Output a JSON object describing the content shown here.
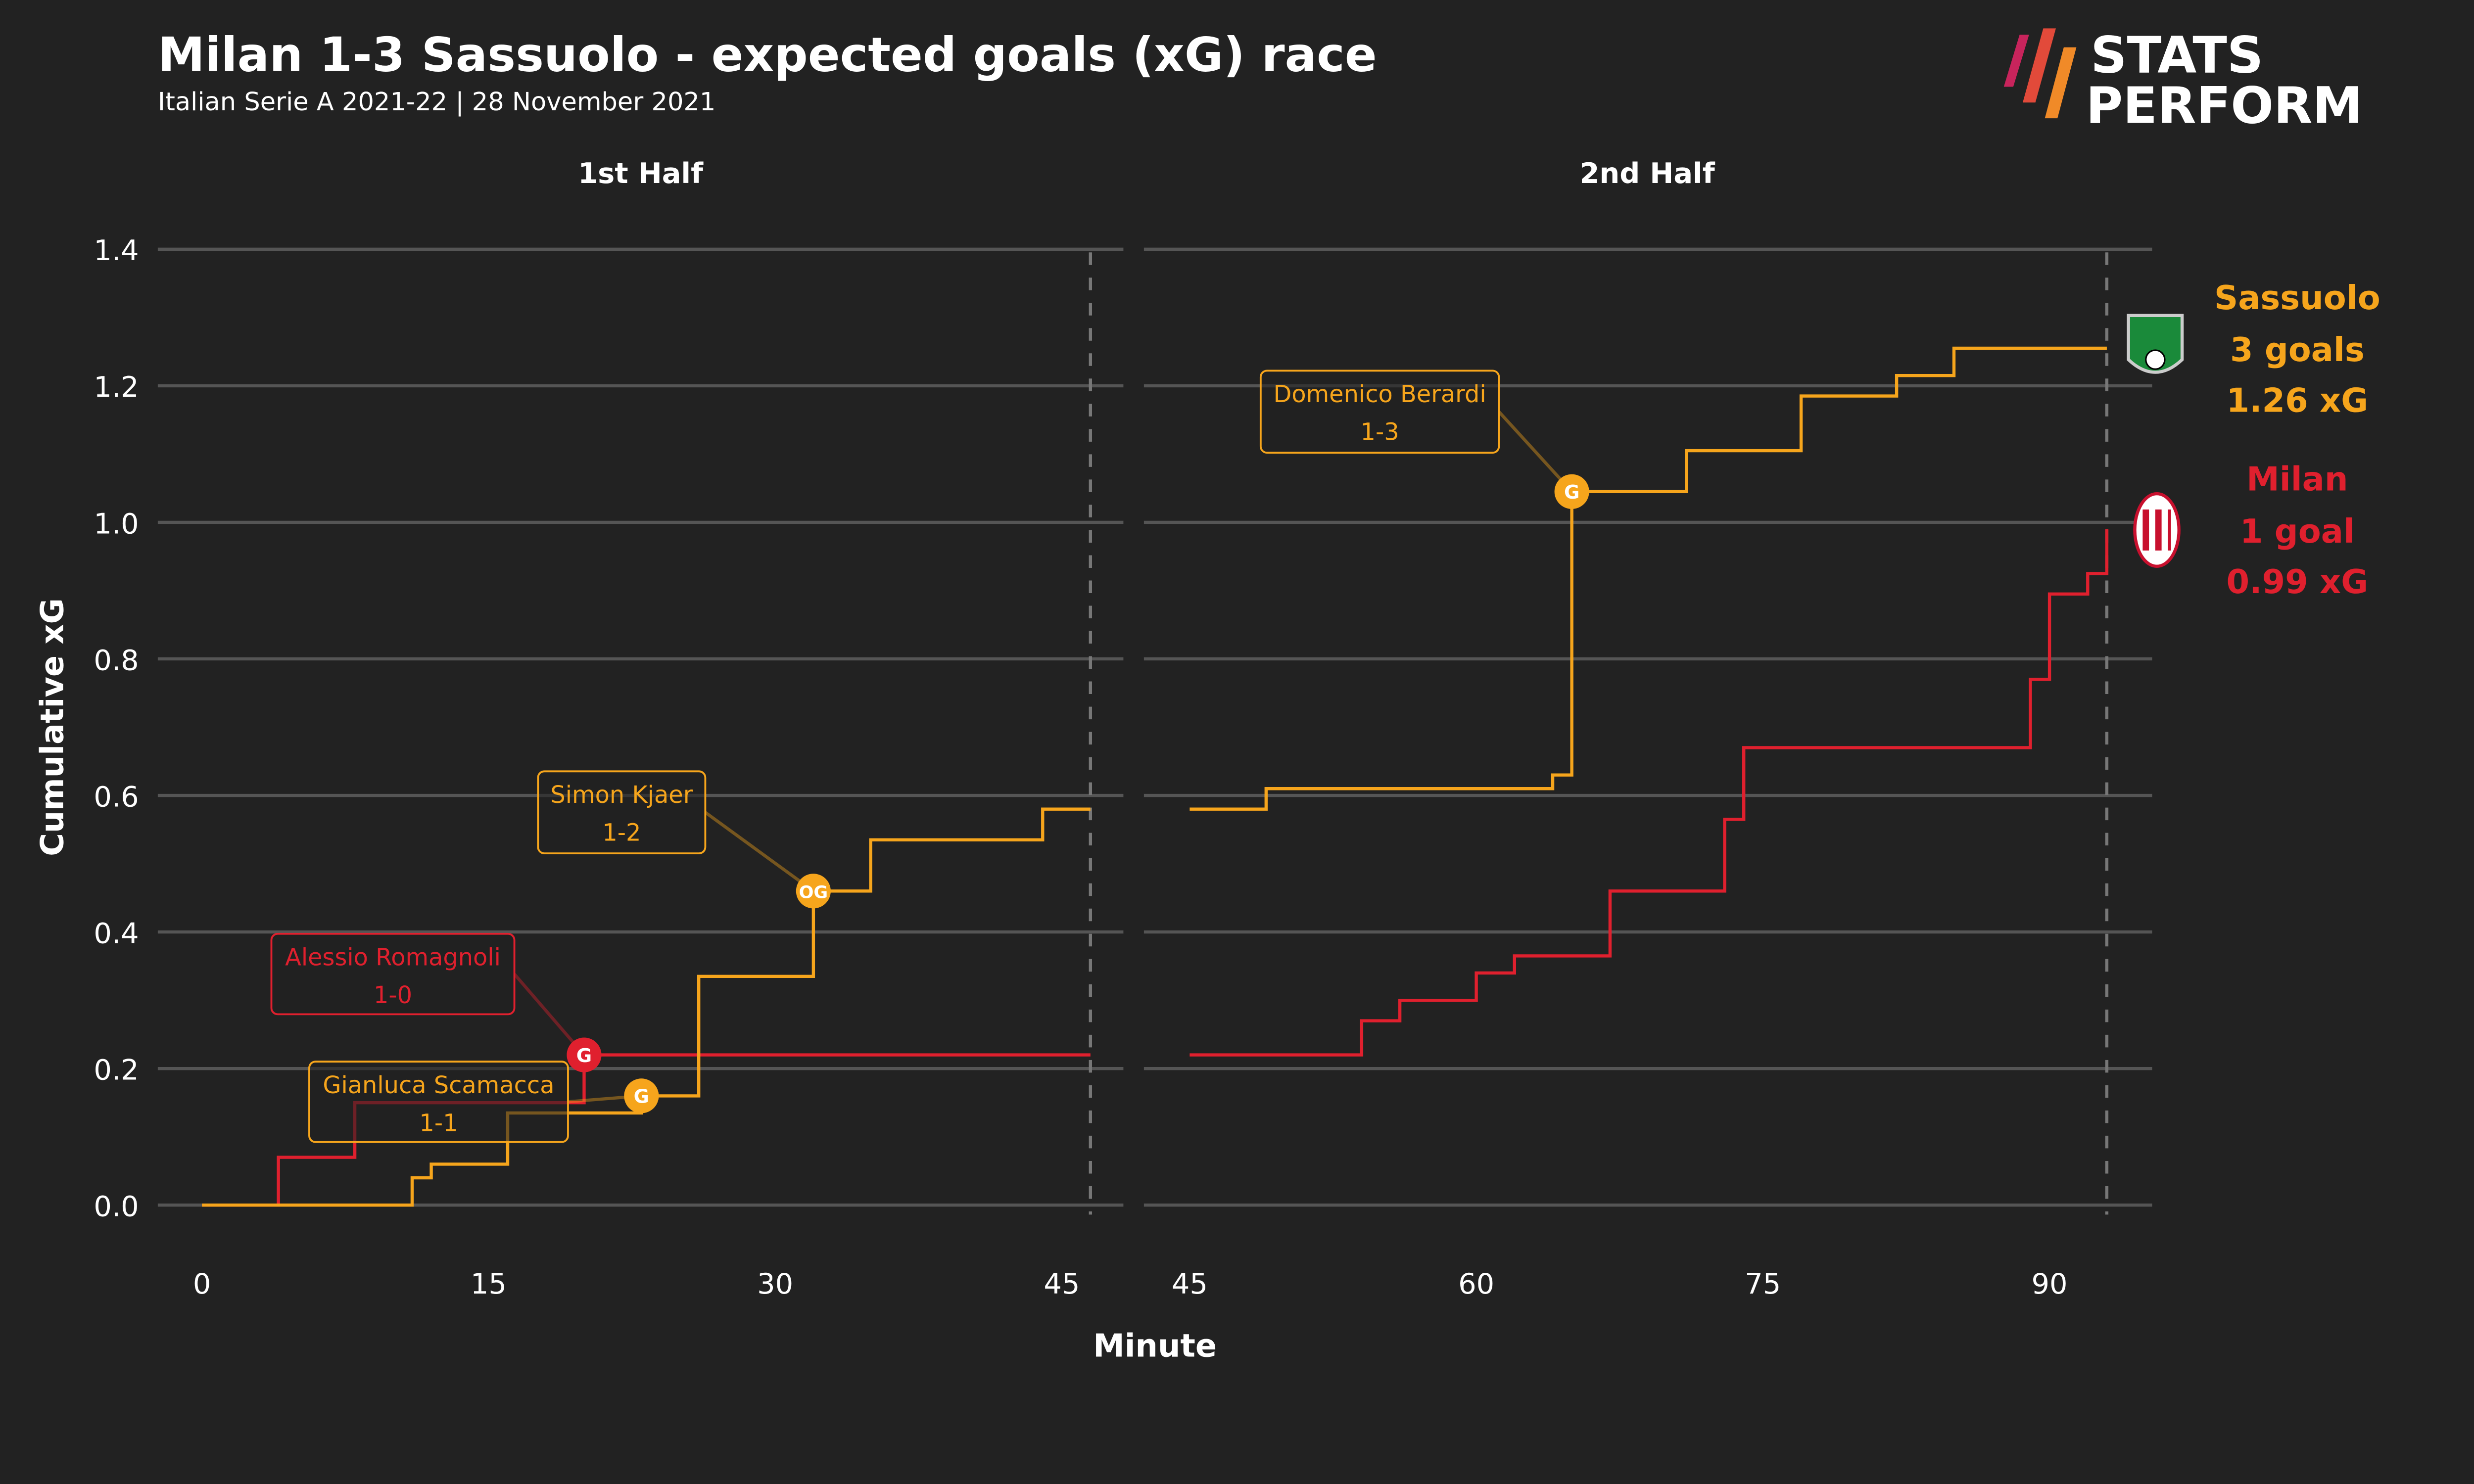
{
  "header": {
    "title": "Milan 1-3 Sassuolo - expected goals (xG) race",
    "subtitle": "Italian Serie A 2021-22 | 28 November 2021",
    "logo_line1": "STATS",
    "logo_line2": "PERFORM"
  },
  "colors": {
    "background": "#222222",
    "sassuolo": "#f6a51c",
    "milan": "#e0202e",
    "grid": "#555555",
    "text": "#ffffff"
  },
  "chart_data": {
    "type": "line",
    "title": "Milan 1-3 Sassuolo - expected goals (xG) race",
    "xlabel": "Minute",
    "ylabel": "Cumulative xG",
    "ylim": [
      0,
      1.4
    ],
    "yticks": [
      "0.0",
      "0.2",
      "0.4",
      "0.6",
      "0.8",
      "1.0",
      "1.2",
      "1.4"
    ],
    "grid": true,
    "panels": [
      {
        "title": "1st Half",
        "xlim": [
          0,
          46.5
        ],
        "xticks": [
          "0",
          "15",
          "30",
          "45"
        ],
        "xtick_values": [
          0,
          15,
          30,
          45
        ],
        "end_marker": 46.5
      },
      {
        "title": "2nd Half",
        "xlim": [
          45,
          93
        ],
        "xticks": [
          "45",
          "60",
          "75",
          "90"
        ],
        "xtick_values": [
          45,
          60,
          75,
          90
        ],
        "end_marker": 93
      }
    ],
    "series": [
      {
        "name": "Milan",
        "color": "#e0202e",
        "first_half": [
          [
            0,
            0
          ],
          [
            4,
            0.07
          ],
          [
            8,
            0.15
          ],
          [
            20,
            0.22
          ],
          [
            46.5,
            0.22
          ]
        ],
        "second_half": [
          [
            45,
            0.22
          ],
          [
            54,
            0.27
          ],
          [
            56,
            0.3
          ],
          [
            60,
            0.34
          ],
          [
            62,
            0.365
          ],
          [
            67,
            0.46
          ],
          [
            73,
            0.565
          ],
          [
            74,
            0.67
          ],
          [
            89,
            0.77
          ],
          [
            90,
            0.895
          ],
          [
            92,
            0.925
          ],
          [
            93,
            0.99
          ]
        ]
      },
      {
        "name": "Sassuolo",
        "color": "#f6a51c",
        "first_half": [
          [
            0,
            0
          ],
          [
            11,
            0.04
          ],
          [
            12,
            0.06
          ],
          [
            16,
            0.135
          ],
          [
            23,
            0.16
          ],
          [
            26,
            0.335
          ],
          [
            32,
            0.46
          ],
          [
            35,
            0.535
          ],
          [
            44,
            0.58
          ],
          [
            46.5,
            0.58
          ]
        ],
        "second_half": [
          [
            45,
            0.58
          ],
          [
            49,
            0.61
          ],
          [
            64,
            0.63
          ],
          [
            65,
            1.045
          ],
          [
            71,
            1.105
          ],
          [
            77,
            1.185
          ],
          [
            82,
            1.215
          ],
          [
            85,
            1.255
          ],
          [
            93,
            1.255
          ]
        ]
      }
    ],
    "goals": [
      {
        "half": 0,
        "minute": 20,
        "xg": 0.22,
        "team": "Milan",
        "marker": "G",
        "player": "Alessio Romagnoli",
        "score": "1-0"
      },
      {
        "half": 0,
        "minute": 23,
        "xg": 0.16,
        "team": "Sassuolo",
        "marker": "G",
        "player": "Gianluca Scamacca",
        "score": "1-1"
      },
      {
        "half": 0,
        "minute": 32,
        "xg": 0.46,
        "team": "Sassuolo",
        "marker": "OG",
        "player": "Simon Kjaer",
        "score": "1-2"
      },
      {
        "half": 1,
        "minute": 65,
        "xg": 1.045,
        "team": "Sassuolo",
        "marker": "G",
        "player": "Domenico Berardi",
        "score": "1-3"
      }
    ],
    "legend": [
      {
        "team": "Sassuolo",
        "goals": "3 goals",
        "xg": "1.26 xG",
        "color": "#f6a51c"
      },
      {
        "team": "Milan",
        "goals": "1 goal",
        "xg": "0.99 xG",
        "color": "#e0202e"
      }
    ]
  }
}
